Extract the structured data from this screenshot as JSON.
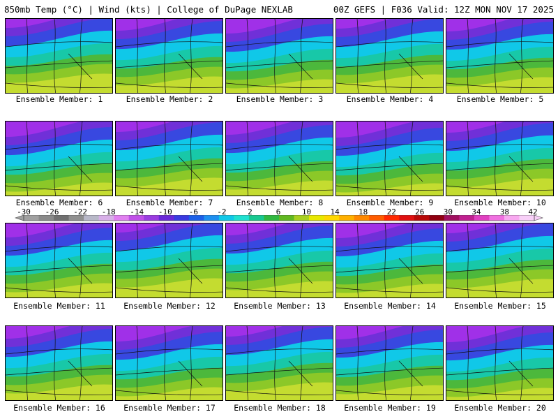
{
  "header": {
    "left": "850mb Temp (°C) | Wind (kts) | College of DuPage NEXLAB",
    "right": "00Z GEFS | F036 Valid: 12Z MON NOV 17 2025"
  },
  "members": [
    "Ensemble Member: 1",
    "Ensemble Member: 2",
    "Ensemble Member: 3",
    "Ensemble Member: 4",
    "Ensemble Member: 5",
    "Ensemble Member: 6",
    "Ensemble Member: 7",
    "Ensemble Member: 8",
    "Ensemble Member: 9",
    "Ensemble Member: 10",
    "Ensemble Member: 11",
    "Ensemble Member: 12",
    "Ensemble Member: 13",
    "Ensemble Member: 14",
    "Ensemble Member: 15",
    "Ensemble Member: 16",
    "Ensemble Member: 17",
    "Ensemble Member: 18",
    "Ensemble Member: 19",
    "Ensemble Member: 20"
  ],
  "colorbar": {
    "labels": [
      "-30",
      "-26",
      "-22",
      "-18",
      "-14",
      "-10",
      "-6",
      "-2",
      "2",
      "6",
      "10",
      "14",
      "18",
      "22",
      "26",
      "30",
      "34",
      "38",
      "42"
    ],
    "colors": [
      "#a0a0a0",
      "#8a8a8a",
      "#707070",
      "#909090",
      "#b8b8c8",
      "#d8b0e8",
      "#e080f0",
      "#c050e8",
      "#9a3ce0",
      "#6a28d8",
      "#3a3ae0",
      "#1c60e8",
      "#1e90f0",
      "#10c8e8",
      "#20e0d0",
      "#18c890",
      "#30b840",
      "#60b820",
      "#a8d020",
      "#e8e800",
      "#ffd800",
      "#ffb000",
      "#ff8800",
      "#ff5c00",
      "#ff2800",
      "#e01010",
      "#b80808",
      "#900010",
      "#a01060",
      "#c02090",
      "#e040c0",
      "#f070e0",
      "#f8a8f0",
      "#f8d0f8"
    ]
  }
}
